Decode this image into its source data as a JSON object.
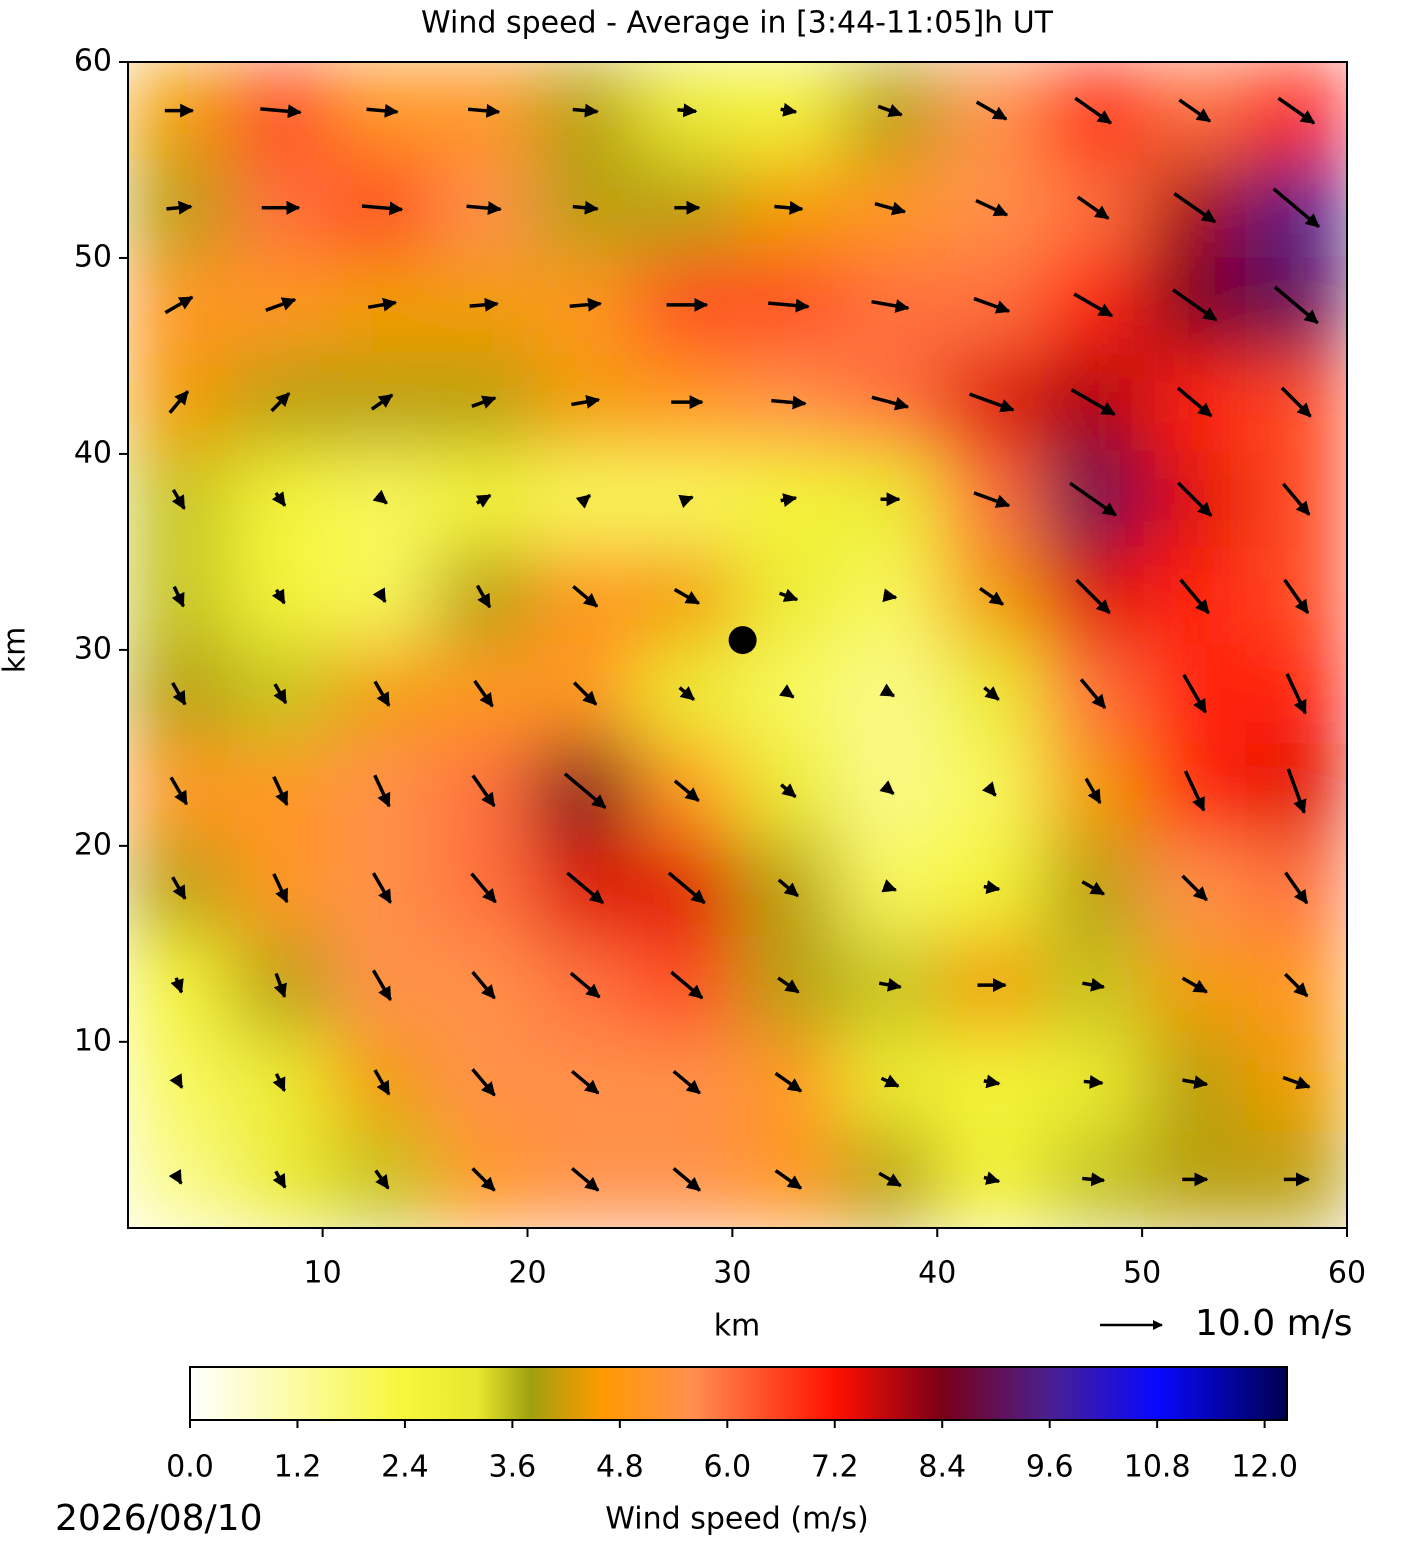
{
  "chart_data": {
    "type": "quiver_field",
    "title": "Wind speed - Average in [3:44-11:05]h UT",
    "x_label": "km",
    "y_label": "km",
    "xlim": [
      0.5,
      60
    ],
    "ylim": [
      0.5,
      60
    ],
    "xticks": [
      10,
      20,
      30,
      40,
      50,
      60
    ],
    "yticks": [
      10,
      20,
      30,
      40,
      50,
      60
    ],
    "cell_size": 5,
    "speed": [
      [
        4.5,
        6.5,
        5,
        5,
        4,
        3,
        2.5,
        4,
        5.5,
        7,
        6,
        7
      ],
      [
        4,
        6,
        6.5,
        5.5,
        4,
        4,
        4.5,
        5,
        5.5,
        6,
        8,
        9.5
      ],
      [
        5,
        5,
        4.5,
        4.5,
        5,
        6.5,
        6.5,
        6,
        6,
        7,
        8.5,
        9
      ],
      [
        4.5,
        4,
        4,
        4,
        4.5,
        5,
        5.5,
        6,
        7.5,
        8,
        7,
        6.5
      ],
      [
        3.5,
        2.5,
        2,
        2.5,
        2,
        2,
        2.5,
        3,
        6,
        9,
        7.5,
        6.5
      ],
      [
        3.5,
        2.5,
        2,
        4,
        5,
        4.5,
        3,
        2,
        4.5,
        7.5,
        7,
        6.5
      ],
      [
        4,
        3.5,
        4.5,
        5,
        5,
        3,
        2,
        1.5,
        3,
        6,
        7,
        7
      ],
      [
        5,
        5,
        5.5,
        6,
        8.5,
        5,
        3,
        1.5,
        2,
        4.5,
        7,
        7.5
      ],
      [
        4,
        5,
        5.5,
        6,
        7.5,
        7.5,
        4,
        2,
        2.5,
        4,
        5.5,
        6
      ],
      [
        2.5,
        4,
        5.5,
        5.5,
        6,
        6.5,
        4,
        3.5,
        4.5,
        3.5,
        4.5,
        5
      ],
      [
        2,
        3,
        4.5,
        5.5,
        5.5,
        5.5,
        5,
        3,
        2.5,
        3,
        4,
        4.5
      ],
      [
        1.5,
        3,
        3.5,
        5,
        5.5,
        5.5,
        5,
        4,
        2.5,
        3.5,
        4,
        4
      ]
    ],
    "direction_deg": [
      [
        0,
        -5,
        -5,
        -5,
        -5,
        -5,
        -10,
        -20,
        -30,
        -35,
        -35,
        -35
      ],
      [
        5,
        0,
        -5,
        -5,
        -5,
        0,
        -5,
        -15,
        -25,
        -35,
        -35,
        -40
      ],
      [
        30,
        20,
        10,
        5,
        5,
        0,
        -5,
        -10,
        -20,
        -30,
        -35,
        -40
      ],
      [
        50,
        45,
        35,
        20,
        10,
        0,
        -5,
        -15,
        -20,
        -30,
        -40,
        -45
      ],
      [
        -60,
        -55,
        -40,
        30,
        40,
        20,
        10,
        0,
        -20,
        -35,
        -45,
        -50
      ],
      [
        -65,
        -60,
        -60,
        -60,
        -40,
        -30,
        -20,
        -10,
        -35,
        -45,
        -50,
        -55
      ],
      [
        -60,
        -60,
        -60,
        -55,
        -45,
        -40,
        -35,
        -30,
        -40,
        -50,
        -60,
        -65
      ],
      [
        -60,
        -65,
        -65,
        -55,
        -40,
        -40,
        -40,
        -40,
        -50,
        -60,
        -65,
        -70
      ],
      [
        -60,
        -65,
        -60,
        -50,
        -40,
        -40,
        -40,
        -20,
        -10,
        -30,
        -45,
        -55
      ],
      [
        -70,
        -70,
        -60,
        -50,
        -40,
        -40,
        -35,
        -10,
        0,
        -10,
        -30,
        -45
      ],
      [
        -60,
        -65,
        -60,
        -50,
        -40,
        -40,
        -35,
        -25,
        -10,
        -5,
        -10,
        -20
      ],
      [
        -60,
        -60,
        -55,
        -45,
        -40,
        -40,
        -35,
        -30,
        -15,
        -5,
        0,
        0
      ]
    ],
    "marker": {
      "x": 30.5,
      "y": 30.5,
      "color": "#000000"
    },
    "arrow_color": "#000000",
    "quiver_key": {
      "value": 10,
      "label": "10.0 m/s"
    },
    "colorbar": {
      "label": "Wind speed (m/s)",
      "lim": [
        0,
        12.25
      ],
      "ticks": [
        {
          "value": 0,
          "label": "0.0"
        },
        {
          "value": 1.2,
          "label": "1.2"
        },
        {
          "value": 2.4,
          "label": "2.4"
        },
        {
          "value": 3.6,
          "label": "3.6"
        },
        {
          "value": 4.8,
          "label": "4.8"
        },
        {
          "value": 6,
          "label": "6.0"
        },
        {
          "value": 7.2,
          "label": "7.2"
        },
        {
          "value": 8.4,
          "label": "8.4"
        },
        {
          "value": 9.6,
          "label": "9.6"
        },
        {
          "value": 10.8,
          "label": "10.8"
        },
        {
          "value": 12,
          "label": "12.0"
        }
      ],
      "stops": [
        0,
        1.2,
        2.4,
        3.2,
        3.8,
        4.6,
        5.6,
        7.2,
        8.4,
        9.6,
        10.8,
        12.25
      ],
      "colors": [
        "#ffffff",
        "#fbfba0",
        "#f6f63a",
        "#e8e830",
        "#a0a010",
        "#ff9a00",
        "#ff9050",
        "#ff1000",
        "#7a0018",
        "#4a2090",
        "#0808ff",
        "#000050"
      ]
    },
    "date": "2026/08/10"
  }
}
